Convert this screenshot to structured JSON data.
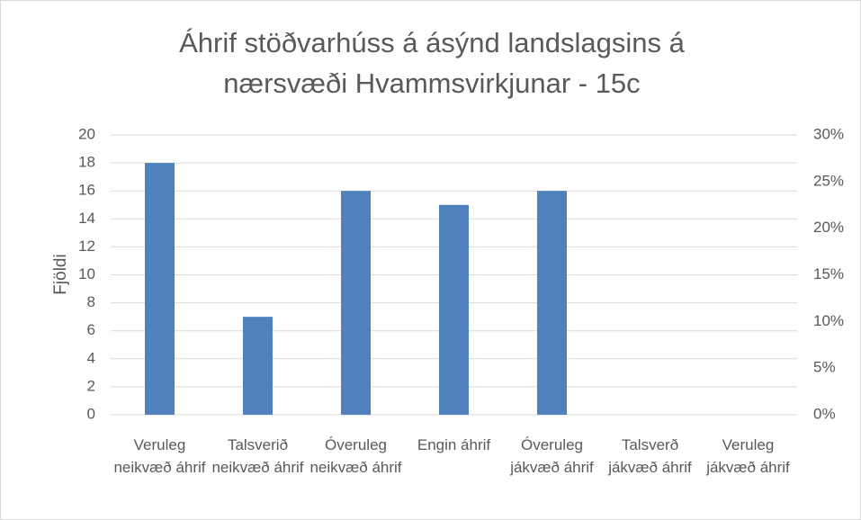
{
  "chart_data": {
    "type": "bar",
    "title": "Áhrif stöðvarhúss á ásýnd landslagsins á nærsvæði Hvammsvirkjunar - 15c",
    "y_label": "Fjöldi",
    "categories": [
      "Veruleg neikvæð áhrif",
      "Talsverið neikvæð áhrif",
      "Óveruleg neikvæð áhrif",
      "Engin áhrif",
      "Óveruleg jákvæð áhrif",
      "Talsverð jákvæð áhrif",
      "Veruleg jákvæð áhrif"
    ],
    "values": [
      18,
      7,
      16,
      15,
      16,
      0,
      0
    ],
    "color": "#4f81bd",
    "ylim": [
      0,
      20
    ],
    "yticks": [
      0,
      2,
      4,
      6,
      8,
      10,
      12,
      14,
      16,
      18,
      20
    ],
    "y2lim": [
      0,
      30
    ],
    "y2ticks": [
      {
        "value": 0,
        "label": "0%"
      },
      {
        "value": 5,
        "label": "5%"
      },
      {
        "value": 10,
        "label": "10%"
      },
      {
        "value": 15,
        "label": "15%"
      },
      {
        "value": 20,
        "label": "20%"
      },
      {
        "value": 25,
        "label": "25%"
      },
      {
        "value": 30,
        "label": "30%"
      }
    ],
    "grid": true
  }
}
